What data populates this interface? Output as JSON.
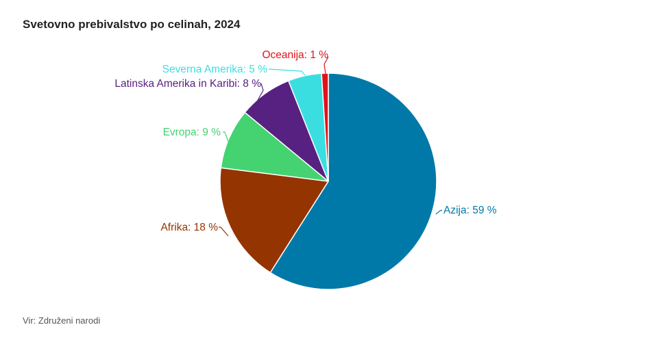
{
  "chart_data": {
    "type": "pie",
    "title": "Svetovno prebivalstvo po celinah, 2024",
    "source": "Vir: Združeni narodi",
    "slices": [
      {
        "name": "Azija",
        "value": 59,
        "label": "Azija: 59 %",
        "color": "#0079A8"
      },
      {
        "name": "Afrika",
        "value": 18,
        "label": "Afrika: 18 %",
        "color": "#943400"
      },
      {
        "name": "Evropa",
        "value": 9,
        "label": "Evropa: 9 %",
        "color": "#45D371"
      },
      {
        "name": "Latinska Amerika in Karibi",
        "value": 8,
        "label": "Latinska Amerika in Karibi: 8 %",
        "color": "#572181"
      },
      {
        "name": "Severna Amerika",
        "value": 5,
        "label": "Severna Amerika: 5 %",
        "color": "#3ADEE1"
      },
      {
        "name": "Oceanija",
        "value": 1,
        "label": "Oceanija: 1 %",
        "color": "#E0121B"
      }
    ]
  }
}
